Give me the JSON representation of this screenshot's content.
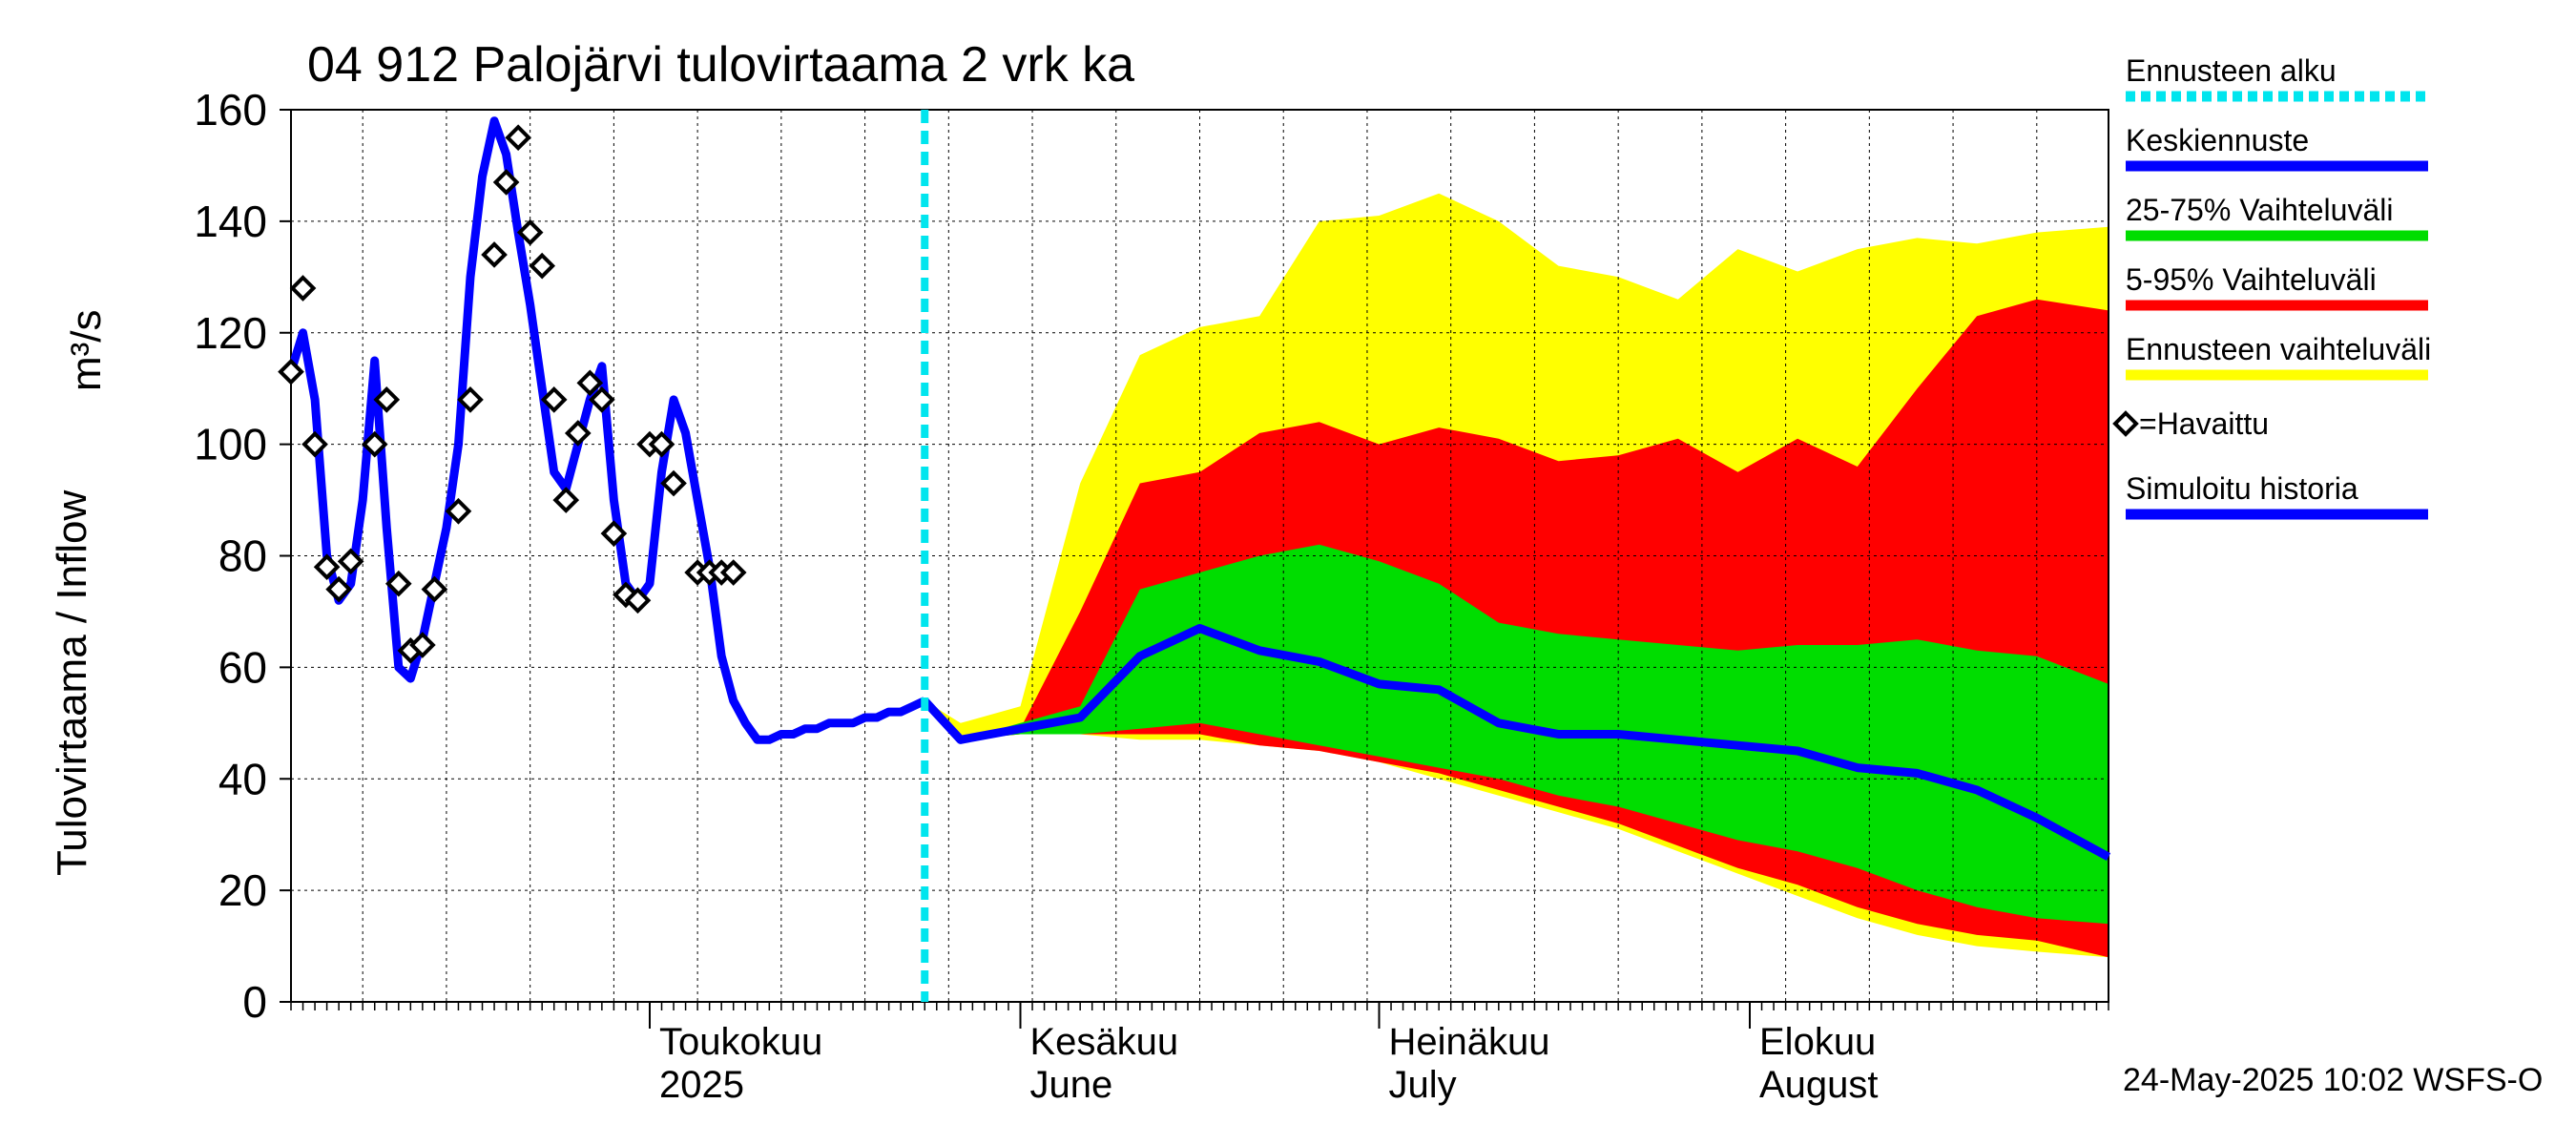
{
  "chart_data": {
    "type": "area",
    "title": "04 912 Palojärvi tulovirtaama 2 vrk ka",
    "ylabel": "Tulovirtaama / Inflow",
    "yunit": "m³/s",
    "ylim": [
      0,
      160
    ],
    "yticks": [
      "0",
      "20",
      "40",
      "60",
      "80",
      "100",
      "120",
      "140",
      "160"
    ],
    "xlim": [
      "2025-04-01",
      "2025-08-31"
    ],
    "grid": true,
    "legend_position": "right",
    "month_labels": [
      {
        "date": "2025-05-01",
        "line1": "Toukokuu",
        "line2": "2025"
      },
      {
        "date": "2025-06-01",
        "line1": "Kesäkuu",
        "line2": "June"
      },
      {
        "date": "2025-07-01",
        "line1": "Heinäkuu",
        "line2": "July"
      },
      {
        "date": "2025-08-01",
        "line1": "Elokuu",
        "line2": "August"
      }
    ],
    "footer": "24-May-2025 10:02 WSFS-O",
    "forecast_start": "2025-05-24",
    "legend": [
      {
        "label": "Ennusteen alku",
        "color": "#00e5ee",
        "style": "dotted"
      },
      {
        "label": "Keskiennuste",
        "color": "#0000ff",
        "style": "line"
      },
      {
        "label": "25-75% Vaihteluväli",
        "color": "#00dd00",
        "style": "line"
      },
      {
        "label": "5-95% Vaihteluväli",
        "color": "#ff0000",
        "style": "line"
      },
      {
        "label": "Ennusteen vaihteluväli",
        "color": "#ffff00",
        "style": "line"
      },
      {
        "label": "=Havaittu",
        "color": "#000000",
        "style": "diamond"
      },
      {
        "label": "Simuloitu historia",
        "color": "#0000ff",
        "style": "line"
      }
    ],
    "colors": {
      "simulated": "#0000ff",
      "median": "#0000ff",
      "band_25_75": "#00dd00",
      "band_5_95": "#ff0000",
      "band_minmax": "#ffff00",
      "forecast_start": "#00e5ee",
      "observed": "#000000"
    },
    "simulated_history": {
      "x": [
        "2025-04-01",
        "2025-04-02",
        "2025-04-03",
        "2025-04-04",
        "2025-04-05",
        "2025-04-06",
        "2025-04-07",
        "2025-04-08",
        "2025-04-09",
        "2025-04-10",
        "2025-04-11",
        "2025-04-12",
        "2025-04-13",
        "2025-04-14",
        "2025-04-15",
        "2025-04-16",
        "2025-04-17",
        "2025-04-18",
        "2025-04-19",
        "2025-04-20",
        "2025-04-21",
        "2025-04-22",
        "2025-04-23",
        "2025-04-24",
        "2025-04-25",
        "2025-04-26",
        "2025-04-27",
        "2025-04-28",
        "2025-04-29",
        "2025-04-30",
        "2025-05-01",
        "2025-05-02",
        "2025-05-03",
        "2025-05-04",
        "2025-05-05",
        "2025-05-06",
        "2025-05-07",
        "2025-05-08",
        "2025-05-09",
        "2025-05-10",
        "2025-05-11",
        "2025-05-12",
        "2025-05-13",
        "2025-05-14",
        "2025-05-15",
        "2025-05-16",
        "2025-05-17",
        "2025-05-18",
        "2025-05-19",
        "2025-05-20",
        "2025-05-21",
        "2025-05-22",
        "2025-05-23",
        "2025-05-24"
      ],
      "y": [
        113,
        120,
        108,
        80,
        72,
        75,
        90,
        115,
        85,
        60,
        58,
        65,
        75,
        85,
        100,
        130,
        148,
        158,
        152,
        138,
        125,
        110,
        95,
        92,
        100,
        108,
        114,
        90,
        75,
        72,
        75,
        95,
        108,
        102,
        90,
        78,
        62,
        54,
        50,
        47,
        47,
        48,
        48,
        49,
        49,
        50,
        50,
        50,
        51,
        51,
        52,
        52,
        53,
        54
      ]
    },
    "observed": {
      "x": [
        "2025-04-01",
        "2025-04-02",
        "2025-04-03",
        "2025-04-04",
        "2025-04-05",
        "2025-04-06",
        "2025-04-08",
        "2025-04-09",
        "2025-04-10",
        "2025-04-11",
        "2025-04-12",
        "2025-04-13",
        "2025-04-15",
        "2025-04-16",
        "2025-04-18",
        "2025-04-19",
        "2025-04-20",
        "2025-04-21",
        "2025-04-22",
        "2025-04-23",
        "2025-04-24",
        "2025-04-25",
        "2025-04-26",
        "2025-04-27",
        "2025-04-28",
        "2025-04-29",
        "2025-04-30",
        "2025-05-01",
        "2025-05-02",
        "2025-05-03",
        "2025-05-05",
        "2025-05-06",
        "2025-05-07",
        "2025-05-08"
      ],
      "y": [
        113,
        128,
        100,
        78,
        74,
        79,
        100,
        108,
        75,
        63,
        64,
        74,
        88,
        108,
        134,
        147,
        155,
        138,
        132,
        108,
        90,
        102,
        111,
        108,
        84,
        73,
        72,
        100,
        100,
        93,
        77,
        77,
        77,
        77
      ]
    },
    "forecast": {
      "x": [
        "2025-05-24",
        "2025-05-27",
        "2025-06-01",
        "2025-06-06",
        "2025-06-11",
        "2025-06-16",
        "2025-06-21",
        "2025-06-26",
        "2025-07-01",
        "2025-07-06",
        "2025-07-11",
        "2025-07-16",
        "2025-07-21",
        "2025-07-26",
        "2025-07-31",
        "2025-08-05",
        "2025-08-10",
        "2025-08-15",
        "2025-08-20",
        "2025-08-25",
        "2025-08-31"
      ],
      "median": [
        54,
        47,
        49,
        51,
        62,
        67,
        63,
        61,
        57,
        56,
        50,
        48,
        48,
        47,
        46,
        45,
        42,
        41,
        38,
        33,
        26
      ],
      "p25": [
        54,
        47,
        48,
        48,
        49,
        50,
        48,
        46,
        44,
        42,
        40,
        37,
        35,
        32,
        29,
        27,
        24,
        20,
        17,
        15,
        14
      ],
      "p75": [
        54,
        47,
        50,
        53,
        74,
        77,
        80,
        82,
        79,
        75,
        68,
        66,
        65,
        64,
        63,
        64,
        64,
        65,
        63,
        62,
        57
      ],
      "p5": [
        54,
        47,
        48,
        48,
        48,
        48,
        46,
        45,
        43,
        41,
        38,
        35,
        32,
        28,
        24,
        21,
        17,
        14,
        12,
        11,
        8
      ],
      "p95": [
        54,
        47,
        49,
        70,
        93,
        95,
        102,
        104,
        100,
        103,
        101,
        97,
        98,
        101,
        95,
        101,
        96,
        110,
        123,
        126,
        124
      ],
      "min": [
        54,
        47,
        48,
        48,
        47,
        47,
        46,
        45,
        43,
        40,
        37,
        34,
        31,
        27,
        23,
        19,
        15,
        12,
        10,
        9,
        8
      ],
      "max": [
        54,
        50,
        53,
        93,
        116,
        121,
        123,
        140,
        141,
        145,
        140,
        132,
        130,
        126,
        135,
        131,
        135,
        137,
        136,
        138,
        139
      ]
    }
  }
}
